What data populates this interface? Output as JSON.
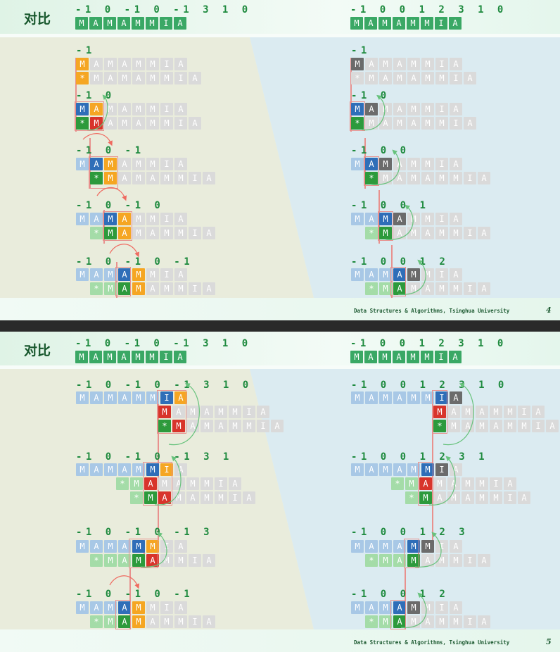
{
  "slides": [
    {
      "title": "对比",
      "footer": "Data Structures & Algorithms, Tsinghua University",
      "page": "4",
      "left_header_next": "-1 0 -1 0 -1 3 1 0",
      "right_header_next": "-1 0 0 1 2 3 1 0",
      "pattern": "MAMAMMIA",
      "left_steps": [
        "-1",
        "-1 0",
        "-1 0 -1",
        "-1 0 -1 0",
        "-1 0 -1 0 -1"
      ],
      "right_steps": [
        "-1",
        "-1 0",
        "-1 0 0",
        "-1 0 0 1",
        "-1 0 0 1 2"
      ]
    },
    {
      "title": "对比",
      "footer": "Data Structures & Algorithms, Tsinghua University",
      "page": "5",
      "left_header_next": "-1 0 -1 0 -1 3 1 0",
      "right_header_next": "-1 0 0 1 2 3 1 0",
      "pattern": "MAMAMMIA",
      "left_steps": [
        "-1 0 -1 0 -1 3 1 0",
        "-1 0 -1 0 -1 3 1",
        "-1 0 -1 0 -1 3",
        "-1 0 -1 0 -1"
      ],
      "right_steps": [
        "-1 0 0 1 2 3 1 0",
        "-1 0 0 1 2 3 1",
        "-1 0 0 1 2 3",
        "-1 0 0 1 2"
      ]
    }
  ],
  "colors": {
    "title": "#17572c",
    "pattern_cell": "#3aa865",
    "match_blue": "#2f6eb8",
    "star_green": "#2d9a3c",
    "orange": "#f5a623",
    "mismatch_red": "#d8342b",
    "gray_shadow": "#6b6b6b",
    "left_panel": "#e9ecdc",
    "right_panel": "#dbebf1"
  }
}
